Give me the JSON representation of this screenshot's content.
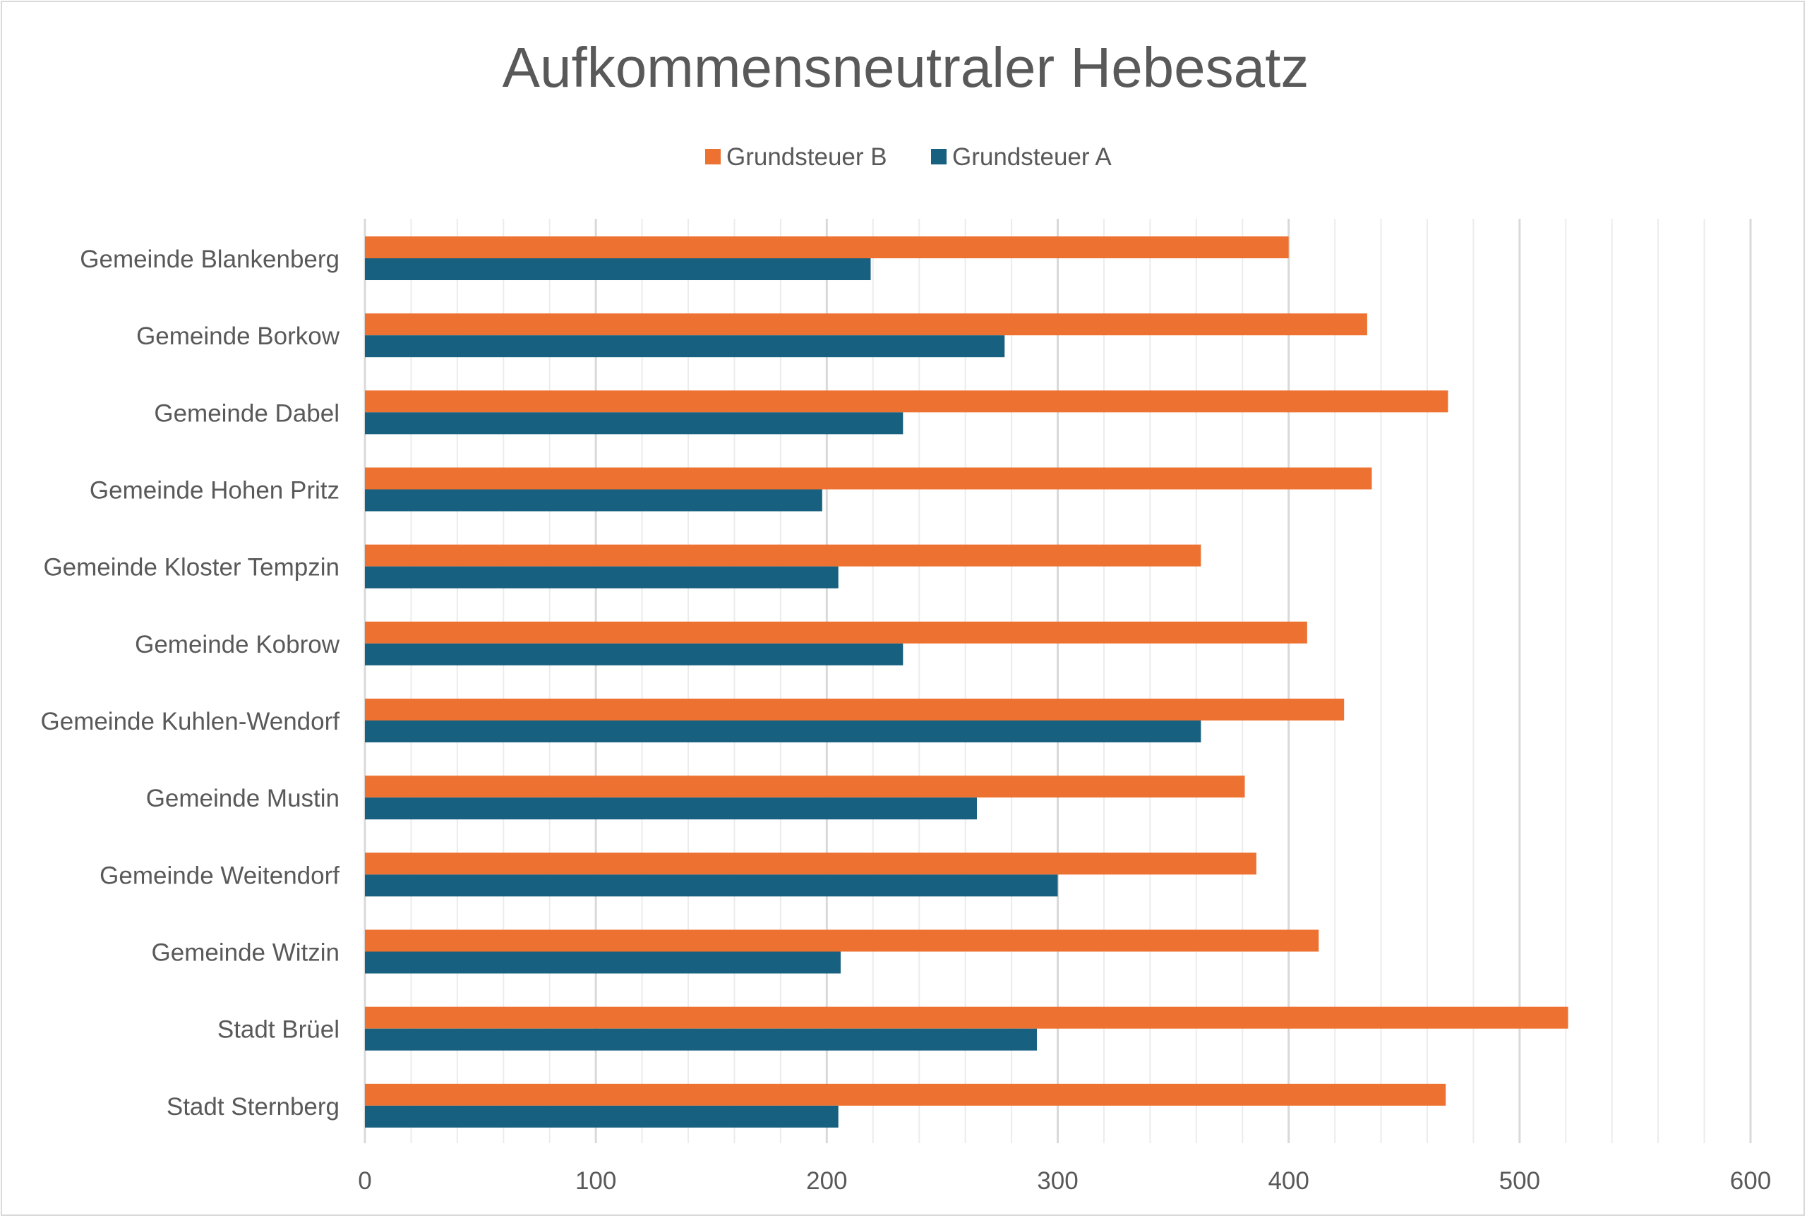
{
  "chart_data": {
    "type": "bar",
    "orientation": "horizontal",
    "title": "Aufkommensneutraler Hebesatz",
    "categories": [
      "Gemeinde Blankenberg",
      "Gemeinde Borkow",
      "Gemeinde Dabel",
      "Gemeinde Hohen Pritz",
      "Gemeinde Kloster Tempzin",
      "Gemeinde Kobrow",
      "Gemeinde Kuhlen-Wendorf",
      "Gemeinde Mustin",
      "Gemeinde Weitendorf",
      "Gemeinde Witzin",
      "Stadt Brüel",
      "Stadt Sternberg"
    ],
    "series": [
      {
        "name": "Grundsteuer B",
        "color": "#ED7232",
        "values": [
          400,
          434,
          469,
          436,
          362,
          408,
          424,
          381,
          386,
          413,
          521,
          468
        ]
      },
      {
        "name": "Grundsteuer A",
        "color": "#17607F",
        "values": [
          219,
          277,
          233,
          198,
          205,
          233,
          362,
          265,
          300,
          206,
          291,
          205
        ]
      }
    ],
    "xlim": [
      0,
      600
    ],
    "xticks": [
      "0",
      "100",
      "200",
      "300",
      "400",
      "500",
      "600"
    ],
    "legend_position": "top",
    "grid": true,
    "minor_grid": true
  }
}
